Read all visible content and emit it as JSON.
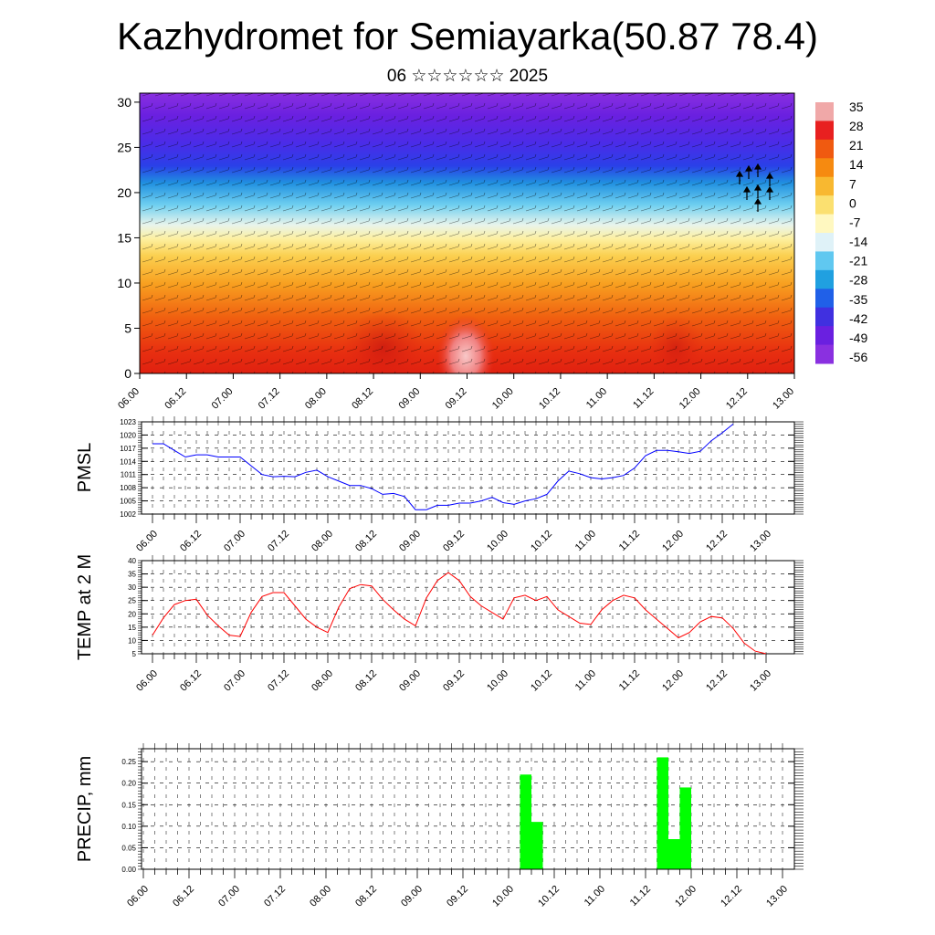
{
  "title": "Kazhydromet for Semiayarka(50.87 78.4)",
  "subtitle": "06 ☆☆☆☆☆☆ 2025",
  "time_labels": [
    "06.00",
    "06.12",
    "07.00",
    "07.12",
    "08.00",
    "08.12",
    "09.00",
    "09.12",
    "10.00",
    "10.12",
    "11.00",
    "11.12",
    "12.00",
    "12.12",
    "13.00"
  ],
  "chart_data": [
    {
      "type": "heatmap",
      "description_units": "height (km) vs time, temperature shading with wind barbs",
      "xlabel": "",
      "ylabel": "",
      "yticks": [
        0,
        5,
        10,
        15,
        20,
        25,
        30
      ],
      "ylim": [
        0,
        31
      ],
      "colorbar": {
        "labels": [
          "35",
          "28",
          "21",
          "14",
          "7",
          "0",
          "-7",
          "-14",
          "-21",
          "-28",
          "-35",
          "-42",
          "-49",
          "-56"
        ],
        "colors": [
          "#f0a8a8",
          "#e82020",
          "#f05a10",
          "#f68a10",
          "#f8b830",
          "#fbe070",
          "#fff8c0",
          "#dff2f8",
          "#60c8f0",
          "#20a0e0",
          "#2060e8",
          "#4030e0",
          "#6a20e0",
          "#8a30e0"
        ]
      }
    },
    {
      "type": "line",
      "ylabel": "PMSL",
      "yticks": [
        1002,
        1005,
        1008,
        1011,
        1014,
        1017,
        1020,
        1023
      ],
      "ylim": [
        1002,
        1023
      ],
      "color": "#0000ff",
      "x_start": "06.00",
      "step_hours": 3,
      "values": [
        1018,
        1018,
        1016.5,
        1015,
        1015.5,
        1015.5,
        1015,
        1015,
        1015,
        1013,
        1011,
        1010.5,
        1010.6,
        1010.5,
        1011.5,
        1012,
        1010.5,
        1009.5,
        1008.5,
        1008.5,
        1007.8,
        1006.5,
        1006.7,
        1006,
        1003,
        1003,
        1004,
        1004,
        1004.5,
        1004.5,
        1005,
        1005.8,
        1004.6,
        1004.2,
        1005,
        1005.5,
        1006.5,
        1009.5,
        1011.8,
        1011.2,
        1010.3,
        1010,
        1010.3,
        1010.8,
        1012.5,
        1015.3,
        1016.5,
        1016.5,
        1016.2,
        1015.8,
        1016.3,
        1018.7,
        1020.5,
        1022.5
      ]
    },
    {
      "type": "line",
      "ylabel": "TEMP at 2 M",
      "yticks": [
        5,
        10,
        15,
        20,
        25,
        30,
        35,
        40
      ],
      "ylim": [
        5,
        40
      ],
      "color": "#ff0000",
      "x_start": "06.00",
      "step_hours": 3,
      "values": [
        12,
        18.5,
        23.5,
        25,
        25.5,
        19.5,
        15.5,
        12,
        11.5,
        20.5,
        26.5,
        28,
        28,
        23,
        18,
        15,
        13,
        22.5,
        29.5,
        31,
        30.5,
        25.5,
        21.5,
        18,
        15.5,
        26,
        32.5,
        35.5,
        32.5,
        26.5,
        23,
        20.5,
        18,
        26,
        27,
        25,
        26.5,
        21.5,
        19,
        16.5,
        16,
        21.5,
        25,
        27,
        26,
        21.5,
        18,
        14.5,
        11,
        13,
        17,
        19,
        18.5,
        14.5,
        9,
        6,
        5
      ]
    },
    {
      "type": "bar",
      "ylabel": "PRECIP, mm",
      "yticks": [
        0.0,
        0.05,
        0.1,
        0.15,
        0.2,
        0.25
      ],
      "ytick_labels": [
        "0.00",
        "0.05",
        "0.10",
        "0.15",
        "0.20",
        "0.25"
      ],
      "ylim": [
        0,
        0.28
      ],
      "color": "#00ff00",
      "x_start": "06.00",
      "step_hours": 3,
      "bars": [
        {
          "index": 33,
          "value": 0.22
        },
        {
          "index": 34,
          "value": 0.11
        },
        {
          "index": 45,
          "value": 0.26
        },
        {
          "index": 46,
          "value": 0.07
        },
        {
          "index": 47,
          "value": 0.19
        }
      ]
    }
  ]
}
